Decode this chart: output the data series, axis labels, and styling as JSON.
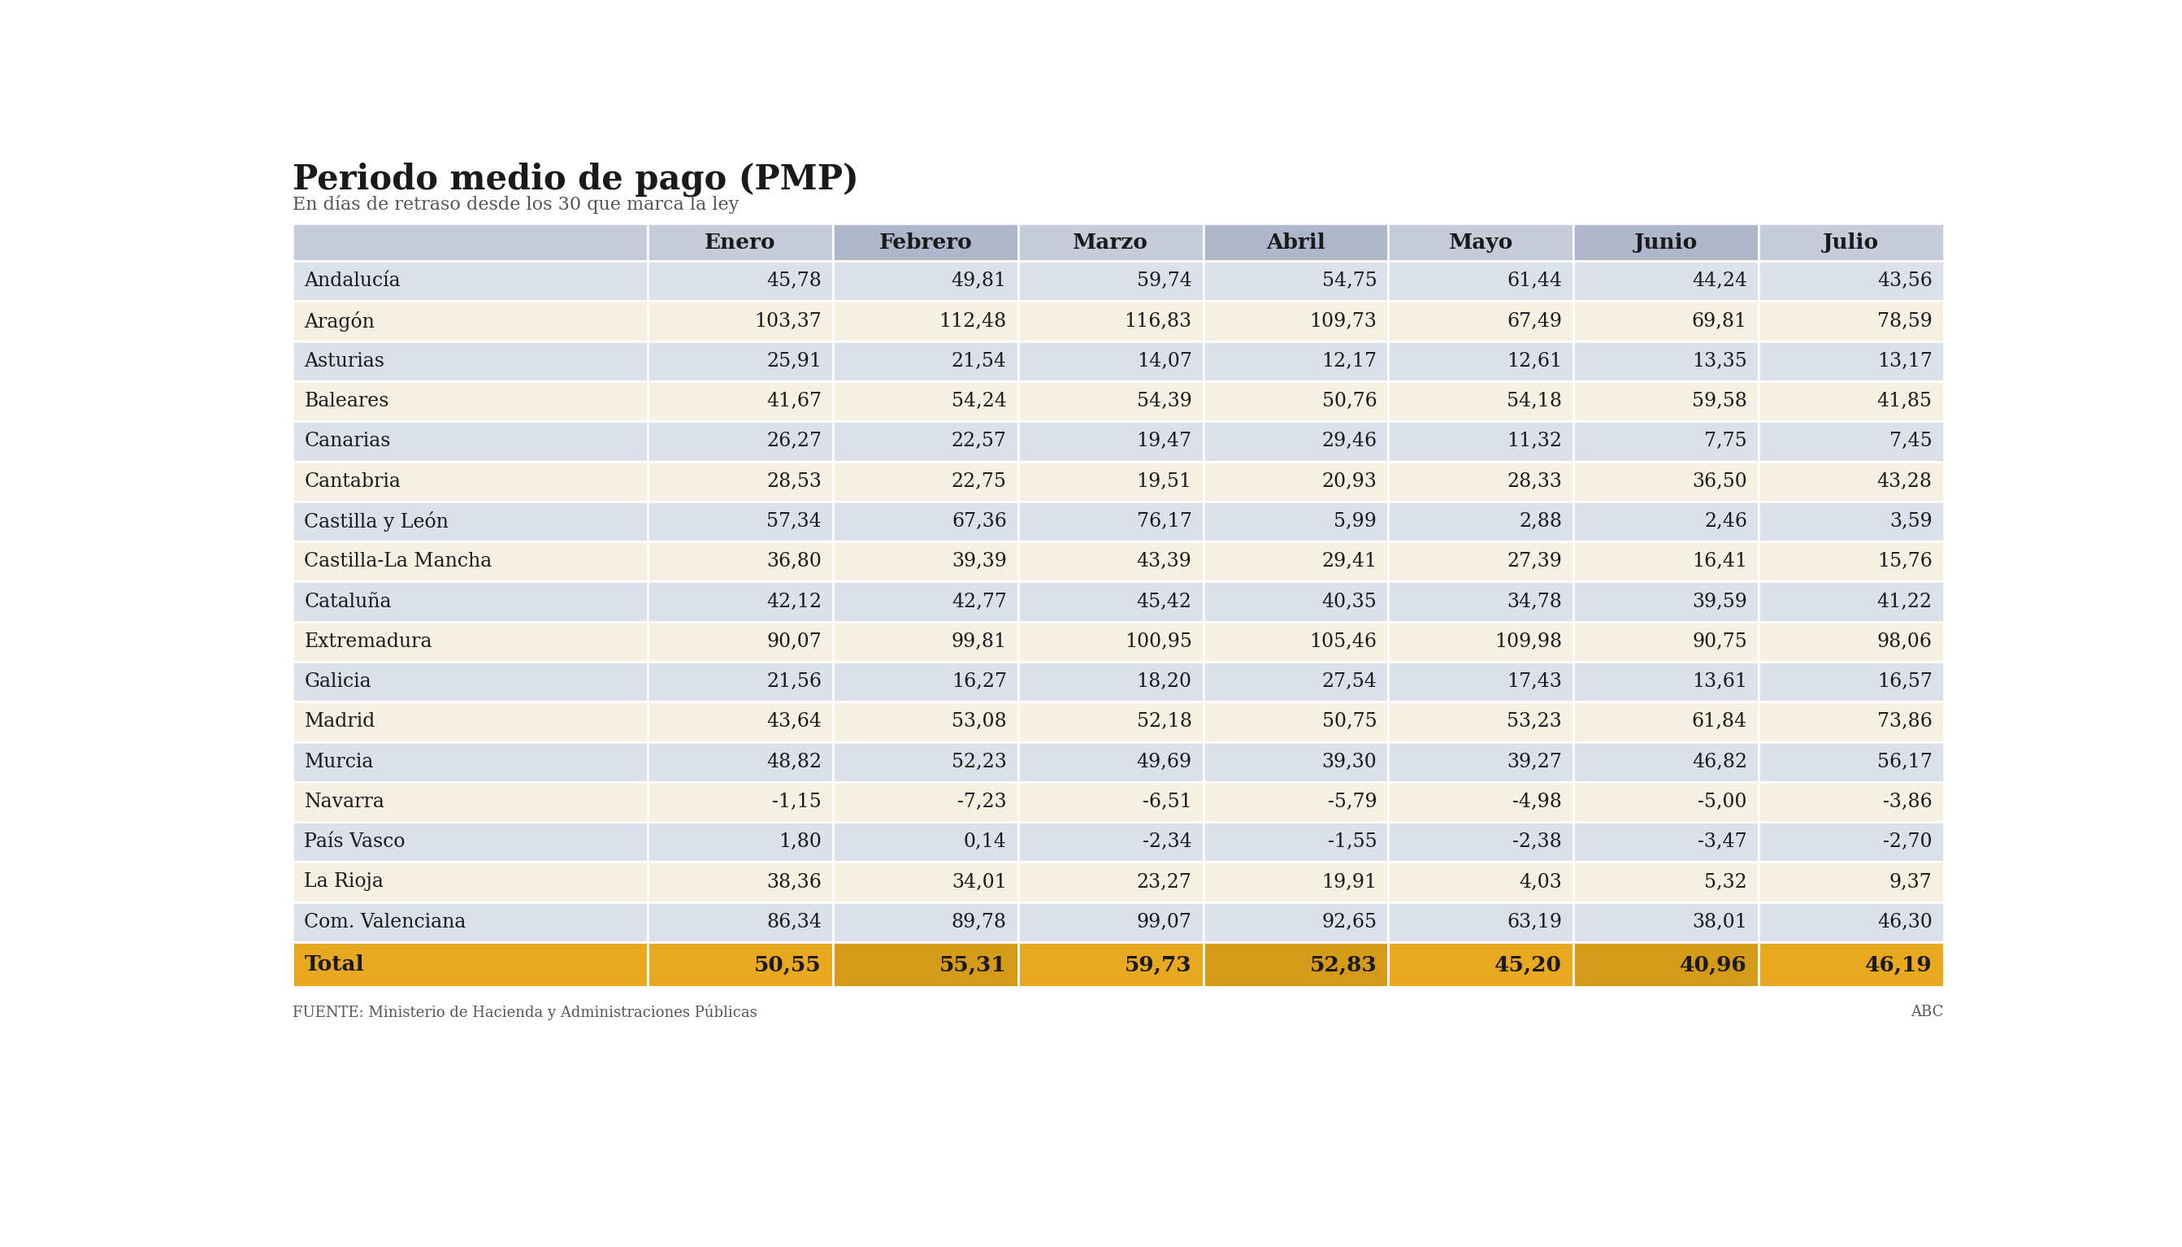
{
  "title": "Periodo medio de pago (PMP)",
  "subtitle": "En días de retraso desde los 30 que marca la ley",
  "columns": [
    "Enero",
    "Febrero",
    "Marzo",
    "Abril",
    "Mayo",
    "Junio",
    "Julio"
  ],
  "rows": [
    {
      "name": "Andalucía",
      "values": [
        "45,78",
        "49,81",
        "59,74",
        "54,75",
        "61,44",
        "44,24",
        "43,56"
      ],
      "highlight": false
    },
    {
      "name": "Aragón",
      "values": [
        "103,37",
        "112,48",
        "116,83",
        "109,73",
        "67,49",
        "69,81",
        "78,59"
      ],
      "highlight": true
    },
    {
      "name": "Asturias",
      "values": [
        "25,91",
        "21,54",
        "14,07",
        "12,17",
        "12,61",
        "13,35",
        "13,17"
      ],
      "highlight": false
    },
    {
      "name": "Baleares",
      "values": [
        "41,67",
        "54,24",
        "54,39",
        "50,76",
        "54,18",
        "59,58",
        "41,85"
      ],
      "highlight": false
    },
    {
      "name": "Canarias",
      "values": [
        "26,27",
        "22,57",
        "19,47",
        "29,46",
        "11,32",
        "7,75",
        "7,45"
      ],
      "highlight": false
    },
    {
      "name": "Cantabria",
      "values": [
        "28,53",
        "22,75",
        "19,51",
        "20,93",
        "28,33",
        "36,50",
        "43,28"
      ],
      "highlight": false
    },
    {
      "name": "Castilla y León",
      "values": [
        "57,34",
        "67,36",
        "76,17",
        "5,99",
        "2,88",
        "2,46",
        "3,59"
      ],
      "highlight": false
    },
    {
      "name": "Castilla-La Mancha",
      "values": [
        "36,80",
        "39,39",
        "43,39",
        "29,41",
        "27,39",
        "16,41",
        "15,76"
      ],
      "highlight": false
    },
    {
      "name": "Cataluña",
      "values": [
        "42,12",
        "42,77",
        "45,42",
        "40,35",
        "34,78",
        "39,59",
        "41,22"
      ],
      "highlight": false
    },
    {
      "name": "Extremadura",
      "values": [
        "90,07",
        "99,81",
        "100,95",
        "105,46",
        "109,98",
        "90,75",
        "98,06"
      ],
      "highlight": true
    },
    {
      "name": "Galicia",
      "values": [
        "21,56",
        "16,27",
        "18,20",
        "27,54",
        "17,43",
        "13,61",
        "16,57"
      ],
      "highlight": false
    },
    {
      "name": "Madrid",
      "values": [
        "43,64",
        "53,08",
        "52,18",
        "50,75",
        "53,23",
        "61,84",
        "73,86"
      ],
      "highlight": false
    },
    {
      "name": "Murcia",
      "values": [
        "48,82",
        "52,23",
        "49,69",
        "39,30",
        "39,27",
        "46,82",
        "56,17"
      ],
      "highlight": false
    },
    {
      "name": "Navarra",
      "values": [
        "-1,15",
        "-7,23",
        "-6,51",
        "-5,79",
        "-4,98",
        "-5,00",
        "-3,86"
      ],
      "highlight": false
    },
    {
      "name": "País Vasco",
      "values": [
        "1,80",
        "0,14",
        "-2,34",
        "-1,55",
        "-2,38",
        "-3,47",
        "-2,70"
      ],
      "highlight": false
    },
    {
      "name": "La Rioja",
      "values": [
        "38,36",
        "34,01",
        "23,27",
        "19,91",
        "4,03",
        "5,32",
        "9,37"
      ],
      "highlight": false
    },
    {
      "name": "Com. Valenciana",
      "values": [
        "86,34",
        "89,78",
        "99,07",
        "92,65",
        "63,19",
        "38,01",
        "46,30"
      ],
      "highlight": false
    }
  ],
  "total": {
    "name": "Total",
    "values": [
      "50,55",
      "55,31",
      "59,73",
      "52,83",
      "45,20",
      "40,96",
      "46,19"
    ]
  },
  "footer": "FUENTE: Ministerio de Hacienda y Administraciones Públicas",
  "footer_right": "ABC",
  "bg_color": "#ffffff",
  "title_color": "#1a1a1a",
  "subtitle_color": "#555555",
  "header_bg_light": "#c8ccda",
  "header_bg_dark": "#b0b6cc",
  "row_blue": "#dce0eb",
  "row_cream": "#f5f0e2",
  "row_highlight": "#f5f0e2",
  "total_bg_light": "#e8a820",
  "total_bg_dark": "#d49a18",
  "border_color": "#ffffff",
  "text_color": "#1a1a1a",
  "name_col_ratio": 0.215,
  "header_col_alternating": [
    false,
    true,
    false,
    true,
    false,
    true,
    false
  ]
}
